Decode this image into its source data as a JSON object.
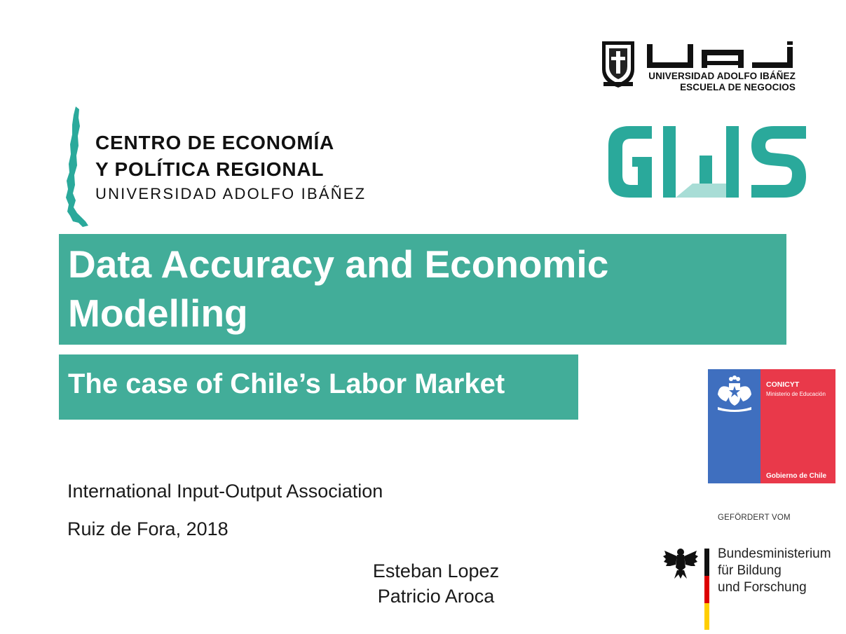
{
  "logos": {
    "uai": {
      "line1": "UNIVERSIDAD ADOLFO IBÁÑEZ",
      "line2": "ESCUELA DE NEGOCIOS"
    },
    "cepr": {
      "line1": "CENTRO DE ECONOMÍA",
      "line2": "Y POLÍTICA REGIONAL",
      "line3": "UNIVERSIDAD ADOLFO IBÁÑEZ"
    },
    "conicyt": {
      "name": "CONICYT",
      "ministry": "Ministerio de Educación",
      "government": "Gobierno de Chile"
    },
    "bmbf": {
      "funded_by": "GEFÖRDERT VOM",
      "line1": "Bundesministerium",
      "line2": "für Bildung",
      "line3": "und Forschung"
    }
  },
  "slide": {
    "title": "Data Accuracy and Economic Modelling",
    "subtitle": "The case of Chile’s Labor Market",
    "event": "International Input-Output Association",
    "place_year": "Ruiz de Fora, 2018",
    "authors": [
      "Esteban Lopez",
      "Patricio Aroca"
    ]
  },
  "colors": {
    "teal": "#42ad99",
    "gws_teal": "#2aa99b",
    "conicyt_blue": "#3f6fbf",
    "conicyt_red": "#e9394a"
  }
}
